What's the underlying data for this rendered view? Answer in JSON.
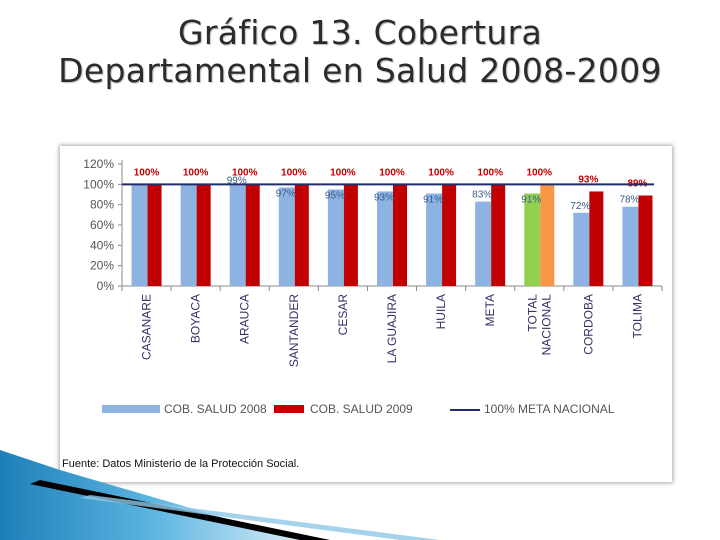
{
  "title": {
    "line1": "Gráfico 13. Cobertura",
    "line2": "Departamental en Salud 2008-2009"
  },
  "colors": {
    "series_2008": "#8db3e2",
    "series_2009": "#c00000",
    "total_2008": "#92d050",
    "total_2009": "#f79646",
    "meta_line": "#1f2d6b"
  },
  "chart_data": {
    "type": "bar",
    "title": "",
    "xlabel": "",
    "ylabel": "",
    "ylim": [
      0,
      120
    ],
    "yticks": [
      "0%",
      "20%",
      "40%",
      "60%",
      "80%",
      "100%",
      "120%"
    ],
    "categories": [
      "CASANARE",
      "BOYACA",
      "ARAUCA",
      "SANTANDER",
      "CESAR",
      "LA GUAJIRA",
      "HUILA",
      "META",
      "TOTAL NACIONAL",
      "CORDOBA",
      "TOLIMA"
    ],
    "category_lines": [
      [
        "CASANARE"
      ],
      [
        "BOYACA"
      ],
      [
        "ARAUCA"
      ],
      [
        "SANTANDER"
      ],
      [
        "CESAR"
      ],
      [
        "LA GUAJIRA"
      ],
      [
        "HUILA"
      ],
      [
        "META"
      ],
      [
        "TOTAL",
        "NACIONAL"
      ],
      [
        "CORDOBA"
      ],
      [
        "TOLIMA"
      ]
    ],
    "series": [
      {
        "name": "COB. SALUD 2008",
        "values": [
          100,
          100,
          99,
          97,
          95,
          93,
          91,
          83,
          91,
          72,
          78
        ],
        "labels": [
          "",
          "",
          "99%",
          "97%",
          "95%",
          "93%",
          "91%",
          "83%",
          "91%",
          "72%",
          "78%"
        ]
      },
      {
        "name": "COB. SALUD 2009",
        "values": [
          100,
          100,
          100,
          100,
          100,
          100,
          100,
          100,
          100,
          93,
          89
        ],
        "labels": [
          "100%",
          "100%",
          "100%",
          "100%",
          "100%",
          "100%",
          "100%",
          "100%",
          "100%",
          "93%",
          "89%"
        ]
      }
    ],
    "reference_line": {
      "name": "100% META NACIONAL",
      "value": 100
    },
    "highlight_category": "TOTAL NACIONAL"
  },
  "source": "Fuente: Datos Ministerio de la Protección Social."
}
